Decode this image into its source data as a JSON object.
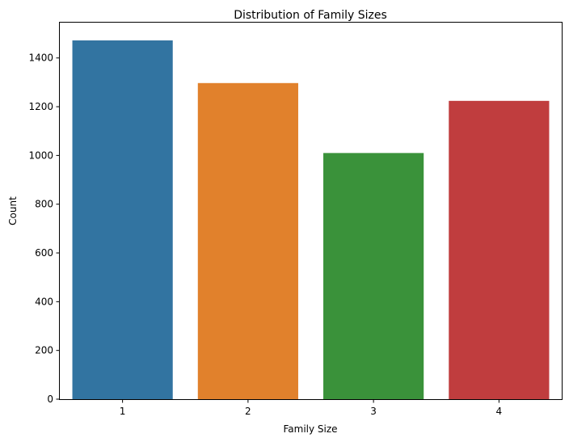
{
  "chart_data": {
    "type": "bar",
    "title": "Distribution of Family Sizes",
    "xlabel": "Family Size",
    "ylabel": "Count",
    "categories": [
      "1",
      "2",
      "3",
      "4"
    ],
    "values": [
      1472,
      1297,
      1010,
      1224
    ],
    "colors": [
      "#3274a1",
      "#e1812c",
      "#3a923a",
      "#c03d3e"
    ],
    "ylim": [
      0,
      1545
    ],
    "yticks": [
      0,
      200,
      400,
      600,
      800,
      1000,
      1200,
      1400
    ],
    "grid": false,
    "legend": "none"
  }
}
